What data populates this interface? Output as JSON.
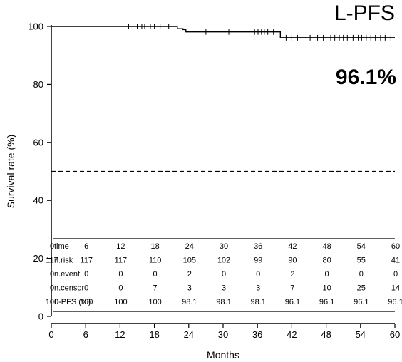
{
  "chart_data": {
    "type": "line",
    "title": "L-PFS",
    "annotation": "96.1%",
    "xlabel": "Months",
    "ylabel": "Survival rate (%)",
    "xlim": [
      0,
      60
    ],
    "ylim": [
      0,
      100
    ],
    "xticks": [
      0,
      6,
      12,
      18,
      24,
      30,
      36,
      42,
      48,
      54,
      60
    ],
    "yticks": [
      0,
      20,
      40,
      60,
      80,
      100
    ],
    "reference_line": {
      "y": 50,
      "style": "dashed"
    },
    "series": [
      {
        "step_points": [
          [
            0,
            100
          ],
          [
            21,
            100
          ],
          [
            22,
            99.2
          ],
          [
            23,
            98.9
          ],
          [
            23.5,
            98.1
          ],
          [
            39.5,
            98.1
          ],
          [
            40,
            96.1
          ],
          [
            60,
            96.1
          ]
        ],
        "censor_marks": [
          [
            13.5,
            100
          ],
          [
            15,
            100
          ],
          [
            15.8,
            100
          ],
          [
            16.3,
            100
          ],
          [
            17.3,
            100
          ],
          [
            18,
            100
          ],
          [
            19,
            100
          ],
          [
            20.5,
            100
          ],
          [
            27,
            98.1
          ],
          [
            31,
            98.1
          ],
          [
            35.5,
            98.1
          ],
          [
            36.1,
            98.1
          ],
          [
            36.7,
            98.1
          ],
          [
            37.2,
            98.1
          ],
          [
            37.8,
            98.1
          ],
          [
            38.8,
            98.1
          ],
          [
            41,
            96.1
          ],
          [
            42,
            96.1
          ],
          [
            43,
            96.1
          ],
          [
            44.5,
            96.1
          ],
          [
            45.2,
            96.1
          ],
          [
            46.5,
            96.1
          ],
          [
            47.5,
            96.1
          ],
          [
            48.8,
            96.1
          ],
          [
            49.5,
            96.1
          ],
          [
            50.3,
            96.1
          ],
          [
            51,
            96.1
          ],
          [
            51.7,
            96.1
          ],
          [
            52.7,
            96.1
          ],
          [
            53.6,
            96.1
          ],
          [
            54.2,
            96.1
          ],
          [
            55,
            96.1
          ],
          [
            55.8,
            96.1
          ],
          [
            56.6,
            96.1
          ],
          [
            57.5,
            96.1
          ],
          [
            58.3,
            96.1
          ],
          [
            59.3,
            96.1
          ]
        ]
      }
    ],
    "risk_table": {
      "rows": [
        {
          "label": "time",
          "values": [
            "0",
            "6",
            "12",
            "18",
            "24",
            "30",
            "36",
            "42",
            "48",
            "54",
            "60"
          ]
        },
        {
          "label": "n.risk",
          "values": [
            "117",
            "117",
            "117",
            "110",
            "105",
            "102",
            "99",
            "90",
            "80",
            "55",
            "41"
          ]
        },
        {
          "label": "n.event",
          "values": [
            "0",
            "0",
            "0",
            "0",
            "2",
            "0",
            "0",
            "2",
            "0",
            "0",
            "0"
          ]
        },
        {
          "label": "n.censor",
          "values": [
            "0",
            "0",
            "0",
            "7",
            "3",
            "3",
            "3",
            "7",
            "10",
            "25",
            "14"
          ]
        },
        {
          "label": "L-PFS (%)",
          "values": [
            "100",
            "100",
            "100",
            "100",
            "98.1",
            "98.1",
            "98.1",
            "96.1",
            "96.1",
            "96.1",
            "96.1"
          ]
        }
      ]
    }
  }
}
